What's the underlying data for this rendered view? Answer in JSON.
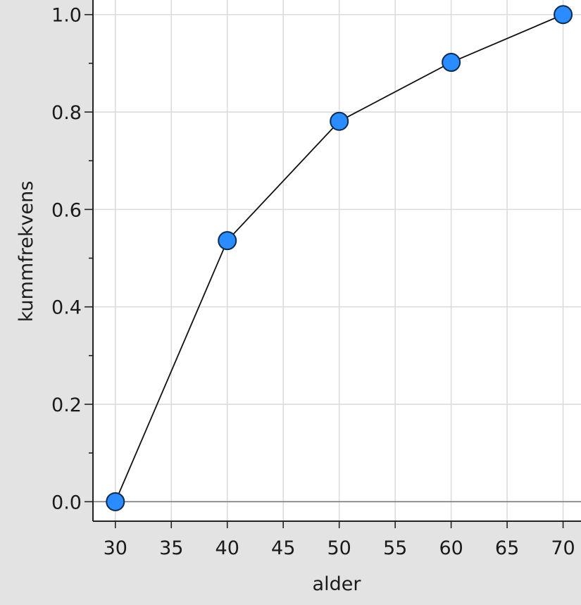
{
  "chart_data": {
    "type": "line",
    "title": "",
    "xlabel": "alder",
    "ylabel": "kummfrekvens",
    "x": [
      30,
      40,
      50,
      60,
      70
    ],
    "series": [
      {
        "values": [
          0.0,
          0.536,
          0.781,
          0.902,
          1.0
        ]
      }
    ],
    "xlim": [
      28,
      71.6
    ],
    "ylim": [
      -0.04,
      1.03
    ],
    "xticks": [
      30,
      35,
      40,
      45,
      50,
      55,
      60,
      65,
      70
    ],
    "xtick_labels": [
      "30",
      "35",
      "40",
      "45",
      "50",
      "55",
      "60",
      "65",
      "70"
    ],
    "yticks": [
      0.0,
      0.2,
      0.4,
      0.6,
      0.8,
      1.0
    ],
    "ytick_labels": [
      "0.0",
      "0.2",
      "0.4",
      "0.6",
      "0.8",
      "1.0"
    ],
    "y_minor_step": 0.1,
    "grid": true,
    "colors": {
      "marker_fill": "#2a8cff",
      "marker_stroke": "#0d2a50",
      "line": "#111111",
      "grid": "#dcdcdc",
      "plot_background": "#ffffff",
      "page_background": "#e3e3e3",
      "zero_line": "#7a7a7a"
    }
  }
}
